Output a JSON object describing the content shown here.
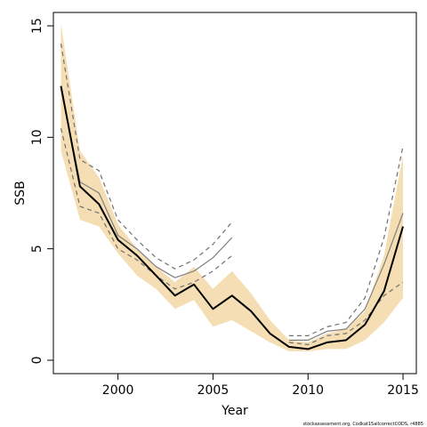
{
  "chart_data": {
    "type": "line",
    "title": "",
    "xlabel": "Year",
    "ylabel": "SSB",
    "xlim": [
      1996.6,
      2015.7
    ],
    "ylim": [
      -0.6,
      15.6
    ],
    "x_ticks": [
      "2000",
      "2005",
      "2010",
      "2015"
    ],
    "y_ticks": [
      "0",
      "5",
      "10",
      "15"
    ],
    "grid": false,
    "legend": "none",
    "footer_text": "stockassessment.org, Codkat15allcorrectCODS, r4885",
    "x": [
      1997,
      1998,
      1999,
      2000,
      2001,
      2002,
      2003,
      2004,
      2005,
      2006,
      2007,
      2008,
      2009,
      2010,
      2011,
      2012,
      2013,
      2014,
      2015
    ],
    "band": {
      "color": "#f5deb3",
      "lower": [
        9.4,
        6.3,
        6.0,
        4.8,
        3.8,
        3.2,
        2.3,
        2.7,
        1.5,
        1.8,
        1.3,
        0.8,
        0.4,
        0.4,
        0.5,
        0.5,
        0.9,
        1.7,
        2.8
      ],
      "upper": [
        15.1,
        9.4,
        8.2,
        6.1,
        5.0,
        4.2,
        3.5,
        4.2,
        3.2,
        4.0,
        3.0,
        1.8,
        0.9,
        0.8,
        1.2,
        1.4,
        2.2,
        4.7,
        9.2
      ]
    },
    "series": [
      {
        "values": [
          12.3,
          7.8,
          7.0,
          5.4,
          4.7,
          3.8,
          2.9,
          3.4,
          2.3,
          2.9,
          2.2,
          1.2,
          0.6,
          0.5,
          0.8,
          0.9,
          1.6,
          3.1,
          6.0
        ],
        "color": "#000000",
        "style": "solid",
        "width": 2
      },
      {
        "values": [
          12.2,
          8.0,
          7.5,
          5.6,
          5.0,
          4.2,
          3.7,
          4.0,
          4.6,
          5.5,
          null,
          null,
          0.9,
          0.9,
          1.3,
          1.4,
          2.3,
          4.3,
          6.6
        ],
        "color": "#808080",
        "style": "solid",
        "width": 1.2
      },
      {
        "values": [
          14.2,
          9.0,
          8.5,
          6.3,
          5.4,
          4.6,
          4.1,
          4.5,
          5.2,
          6.2,
          null,
          null,
          1.1,
          1.1,
          1.5,
          1.7,
          2.8,
          5.5,
          9.6
        ],
        "color": "#707070",
        "style": "dashed",
        "width": 1.2
      },
      {
        "values": [
          10.4,
          6.9,
          6.6,
          5.0,
          4.5,
          3.8,
          3.2,
          3.5,
          4.0,
          4.7,
          null,
          null,
          0.8,
          0.7,
          1.1,
          1.2,
          1.8,
          2.9,
          3.5
        ],
        "color": "#707070",
        "style": "dashed",
        "width": 1.2
      }
    ]
  }
}
